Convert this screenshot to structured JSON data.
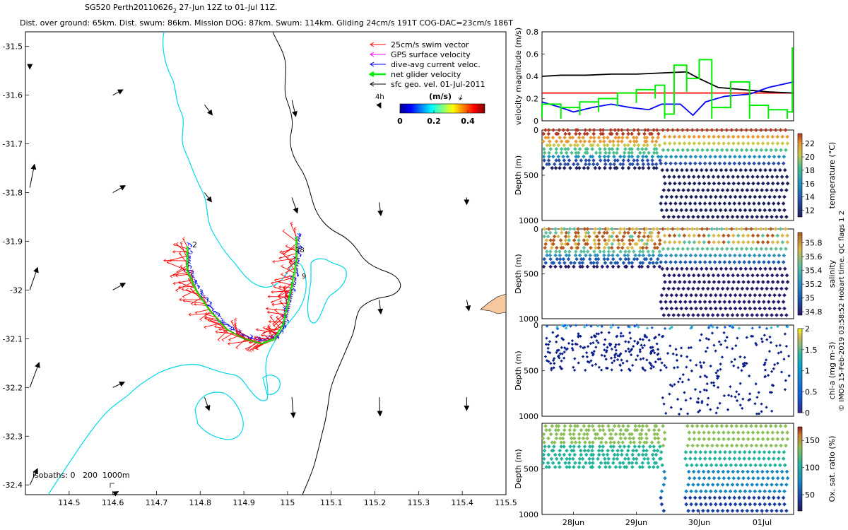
{
  "header": {
    "title_prefix": "SG520 Perth20110626",
    "title_sub": "2",
    "title_suffix": " 27-Jun 12Z to 01-Jul 11Z.",
    "stats": "Dist. over ground: 65km. Dist. swum: 86km. Mission DOG: 87km. Swum: 114km. Gliding 24cm/s 191T COG-DAC=23cm/s 186T"
  },
  "colors": {
    "swim": "#ff0000",
    "gps": "#ff00ff",
    "dac": "#0000ff",
    "net": "#00ee00",
    "geo": "#000000",
    "isobath_200": "#00d8e8",
    "isobath_1000": "#000000",
    "land": "#f7c8a0"
  },
  "chart_data": [
    {
      "type": "scatter",
      "subtype": "map",
      "x_ticks": [
        "114.5",
        "114.6",
        "114.7",
        "114.8",
        "114.9",
        "115",
        "115.1",
        "115.2",
        "115.3",
        "115.4",
        "115.5"
      ],
      "x_tick_values": [
        114.5,
        114.6,
        114.7,
        114.8,
        114.9,
        115.0,
        115.1,
        115.2,
        115.3,
        115.4,
        115.5
      ],
      "y_ticks": [
        "-31.5",
        "-31.6",
        "-31.7",
        "-31.8",
        "-31.9",
        "-32",
        "-32.1",
        "-32.2",
        "-32.3",
        "-32.4"
      ],
      "y_tick_values": [
        -31.5,
        -31.6,
        -31.7,
        -31.8,
        -31.9,
        -32.0,
        -32.1,
        -32.2,
        -32.3,
        -32.4
      ],
      "xlim": [
        114.4,
        115.5
      ],
      "ylim": [
        -32.42,
        -31.47
      ],
      "legend": [
        {
          "label": "25cm/s swim vector",
          "color": "#ff0000"
        },
        {
          "label": "GPS surface velocity",
          "color": "#ff00ff"
        },
        {
          "label": "dive-avg current veloc.",
          "color": "#0000ff"
        },
        {
          "label": "net glider velocity",
          "color": "#00ee00"
        },
        {
          "label": "sfc geo. vel. 01-Jul-2011",
          "color": "#000000"
        }
      ],
      "legend_placement": "top-right",
      "colorbar": {
        "title": "(m/s)",
        "ticks": [
          "0",
          "0.2",
          "0.4"
        ],
        "tick_values": [
          0,
          0.2,
          0.4
        ],
        "range": [
          0,
          0.5
        ]
      },
      "labels": {
        "duration": "4h",
        "isobaths": "isobaths: 0   200  1000m",
        "start": "2",
        "end_a": "28",
        "end_b": "9"
      },
      "track": [
        [
          114.77,
          -31.91
        ],
        [
          114.77,
          -31.96
        ],
        [
          114.79,
          -32.0
        ],
        [
          114.82,
          -32.04
        ],
        [
          114.86,
          -32.08
        ],
        [
          114.9,
          -32.1
        ],
        [
          114.94,
          -32.11
        ],
        [
          114.97,
          -32.1
        ],
        [
          114.99,
          -32.07
        ],
        [
          115.0,
          -32.03
        ],
        [
          115.01,
          -31.99
        ],
        [
          115.02,
          -31.94
        ],
        [
          115.02,
          -31.89
        ]
      ],
      "geo_vectors": [
        {
          "lon": 114.41,
          "lat": -31.54,
          "u": 0.0,
          "v": -0.04
        },
        {
          "lon": 114.6,
          "lat": -31.6,
          "u": 0.13,
          "v": 0.07
        },
        {
          "lon": 114.81,
          "lat": -31.62,
          "u": 0.1,
          "v": -0.13
        },
        {
          "lon": 115.01,
          "lat": -31.61,
          "u": 0.05,
          "v": -0.21
        },
        {
          "lon": 115.21,
          "lat": -31.62,
          "u": 0.02,
          "v": -0.04
        },
        {
          "lon": 114.41,
          "lat": -31.79,
          "u": 0.06,
          "v": 0.3
        },
        {
          "lon": 114.6,
          "lat": -31.8,
          "u": 0.16,
          "v": 0.09
        },
        {
          "lon": 114.81,
          "lat": -31.8,
          "u": 0.09,
          "v": -0.12
        },
        {
          "lon": 115.01,
          "lat": -31.81,
          "u": 0.07,
          "v": -0.2
        },
        {
          "lon": 115.21,
          "lat": -31.82,
          "u": 0.02,
          "v": -0.17
        },
        {
          "lon": 115.41,
          "lat": -31.81,
          "u": 0.0,
          "v": -0.09
        },
        {
          "lon": 114.41,
          "lat": -32.0,
          "u": 0.1,
          "v": 0.29
        },
        {
          "lon": 114.6,
          "lat": -32.0,
          "u": 0.16,
          "v": 0.09
        },
        {
          "lon": 115.21,
          "lat": -32.02,
          "u": 0.02,
          "v": -0.18
        },
        {
          "lon": 115.41,
          "lat": -32.02,
          "u": 0.03,
          "v": -0.14
        },
        {
          "lon": 114.41,
          "lat": -32.2,
          "u": 0.12,
          "v": 0.32
        },
        {
          "lon": 114.6,
          "lat": -32.2,
          "u": 0.15,
          "v": 0.07
        },
        {
          "lon": 114.81,
          "lat": -32.22,
          "u": 0.06,
          "v": -0.17
        },
        {
          "lon": 115.01,
          "lat": -32.22,
          "u": 0.02,
          "v": -0.26
        },
        {
          "lon": 115.21,
          "lat": -32.22,
          "u": 0.01,
          "v": -0.24
        },
        {
          "lon": 115.41,
          "lat": -32.22,
          "u": 0.0,
          "v": -0.17
        },
        {
          "lon": 114.41,
          "lat": -32.4,
          "u": 0.1,
          "v": 0.21
        },
        {
          "lon": 114.6,
          "lat": -32.42,
          "u": 0.07,
          "v": 0.04
        }
      ]
    },
    {
      "type": "line",
      "ylabel": "velocity magnitude (m/s)",
      "ylim": [
        0,
        0.8
      ],
      "y_ticks": [
        "0",
        "0.2",
        "0.4",
        "0.6",
        "0.8"
      ],
      "y_tick_values": [
        0,
        0.2,
        0.4,
        0.6,
        0.8
      ],
      "xlim": [
        27.5,
        31.5
      ],
      "series": [
        {
          "color": "#ff0000",
          "x": [
            27.5,
            31.5
          ],
          "y": [
            0.25,
            0.25
          ]
        },
        {
          "color": "#000000",
          "x": [
            27.5,
            27.8,
            28.2,
            28.6,
            29.0,
            29.4,
            29.8,
            30.0,
            30.3,
            30.7,
            31.1,
            31.5
          ],
          "y": [
            0.4,
            0.41,
            0.41,
            0.42,
            0.42,
            0.43,
            0.44,
            0.38,
            0.3,
            0.28,
            0.26,
            0.25
          ]
        },
        {
          "color": "#0000ff",
          "x": [
            27.5,
            27.8,
            28.0,
            28.3,
            28.6,
            28.9,
            29.2,
            29.4,
            29.7,
            29.9,
            30.1,
            30.4,
            30.8,
            31.1,
            31.5
          ],
          "y": [
            0.17,
            0.12,
            0.08,
            0.12,
            0.15,
            0.12,
            0.1,
            0.15,
            0.15,
            0.05,
            0.17,
            0.22,
            0.24,
            0.3,
            0.35
          ]
        },
        {
          "color": "#00ee00",
          "x": [
            27.5,
            27.8,
            28.1,
            28.4,
            28.7,
            29.0,
            29.3,
            29.45,
            29.6,
            29.8,
            30.0,
            30.2,
            30.5,
            30.8,
            31.1,
            31.4,
            31.48
          ],
          "y": [
            0.15,
            0.12,
            0.17,
            0.2,
            0.25,
            0.28,
            0.32,
            0.06,
            0.5,
            0.38,
            0.55,
            0.12,
            0.35,
            0.14,
            0.1,
            0.08,
            0.66
          ]
        }
      ]
    },
    {
      "type": "heatmap",
      "ylabel": "Depth (m)",
      "y_ticks": [
        "0",
        "500",
        "1000"
      ],
      "y_tick_values": [
        0,
        500,
        1000
      ],
      "colorbar_label": "temperature (°C)",
      "colorbar_ticks": [
        "12",
        "14",
        "16",
        "18",
        "20",
        "22"
      ],
      "colorbar_tick_values": [
        12,
        14,
        16,
        18,
        20,
        22
      ],
      "colorbar_range": [
        11,
        23.5
      ]
    },
    {
      "type": "heatmap",
      "ylabel": "Depth (m)",
      "y_ticks": [
        "0",
        "500",
        "1000"
      ],
      "y_tick_values": [
        0,
        500,
        1000
      ],
      "colorbar_label": "salinity",
      "colorbar_ticks": [
        "34.8",
        "35",
        "35.2",
        "35.4",
        "35.6",
        "35.8"
      ],
      "colorbar_tick_values": [
        34.8,
        35.0,
        35.2,
        35.4,
        35.6,
        35.8
      ],
      "colorbar_range": [
        34.75,
        35.95
      ]
    },
    {
      "type": "heatmap",
      "ylabel": "Depth (m)",
      "y_ticks": [
        "0",
        "500",
        "1000"
      ],
      "y_tick_values": [
        0,
        500,
        1000
      ],
      "colorbar_label": "chl-a (mg m-3)",
      "colorbar_ticks": [
        "0",
        "0.5",
        "1",
        "1.5",
        "2"
      ],
      "colorbar_tick_values": [
        0,
        0.5,
        1,
        1.5,
        2
      ],
      "colorbar_range": [
        0,
        2
      ]
    },
    {
      "type": "heatmap",
      "ylabel": "Depth (m)",
      "y_ticks": [
        "500",
        "1000"
      ],
      "y_tick_values": [
        500,
        1000
      ],
      "x_ticks": [
        "28Jun",
        "29Jun",
        "30Jun",
        "01Jul"
      ],
      "x_tick_values": [
        28,
        29,
        30,
        31
      ],
      "xlim": [
        27.5,
        31.5
      ],
      "colorbar_label": "Ox. sat. ratio (%)",
      "colorbar_ticks": [
        "50",
        "100",
        "150"
      ],
      "colorbar_tick_values": [
        50,
        100,
        150
      ],
      "colorbar_range": [
        20,
        175
      ]
    }
  ],
  "footer": {
    "side_note": "© IMOS 15-Feb-2019 03:58:52 Hobart time. QC flags 1  2"
  }
}
